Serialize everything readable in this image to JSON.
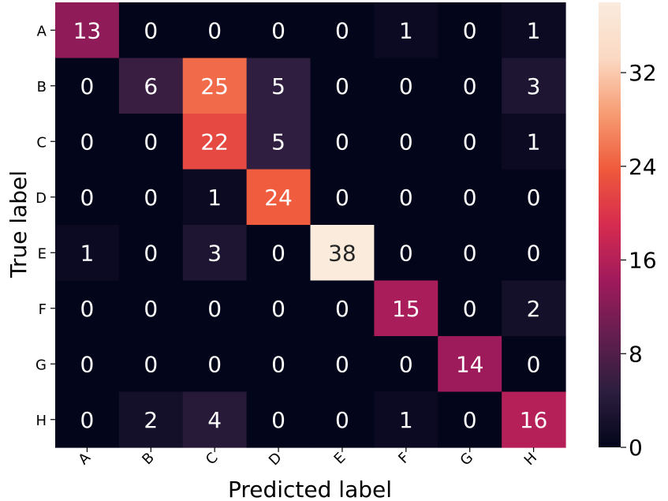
{
  "chart_data": {
    "type": "heatmap",
    "title": "",
    "xlabel": "Predicted label",
    "ylabel": "True label",
    "x_categories": [
      "A",
      "B",
      "C",
      "D",
      "E",
      "F",
      "G",
      "H"
    ],
    "y_categories": [
      "A",
      "B",
      "C",
      "D",
      "E",
      "F",
      "G",
      "H"
    ],
    "values": [
      [
        13,
        0,
        0,
        0,
        0,
        1,
        0,
        1
      ],
      [
        0,
        6,
        25,
        5,
        0,
        0,
        0,
        3
      ],
      [
        0,
        0,
        22,
        5,
        0,
        0,
        0,
        1
      ],
      [
        0,
        0,
        1,
        24,
        0,
        0,
        0,
        0
      ],
      [
        1,
        0,
        3,
        0,
        38,
        0,
        0,
        0
      ],
      [
        0,
        0,
        0,
        0,
        0,
        15,
        0,
        2
      ],
      [
        0,
        0,
        0,
        0,
        0,
        0,
        14,
        0
      ],
      [
        0,
        2,
        4,
        0,
        0,
        1,
        0,
        16
      ]
    ],
    "colorbar": {
      "range": [
        0,
        38
      ],
      "ticks": [
        0,
        8,
        16,
        24,
        32
      ]
    },
    "colormap": [
      "#03051a",
      "#2c1e3e",
      "#631e4f",
      "#a01a5c",
      "#d62b4f",
      "#ef5a3b",
      "#f69c73",
      "#fbd9c3",
      "#faebdd"
    ]
  }
}
